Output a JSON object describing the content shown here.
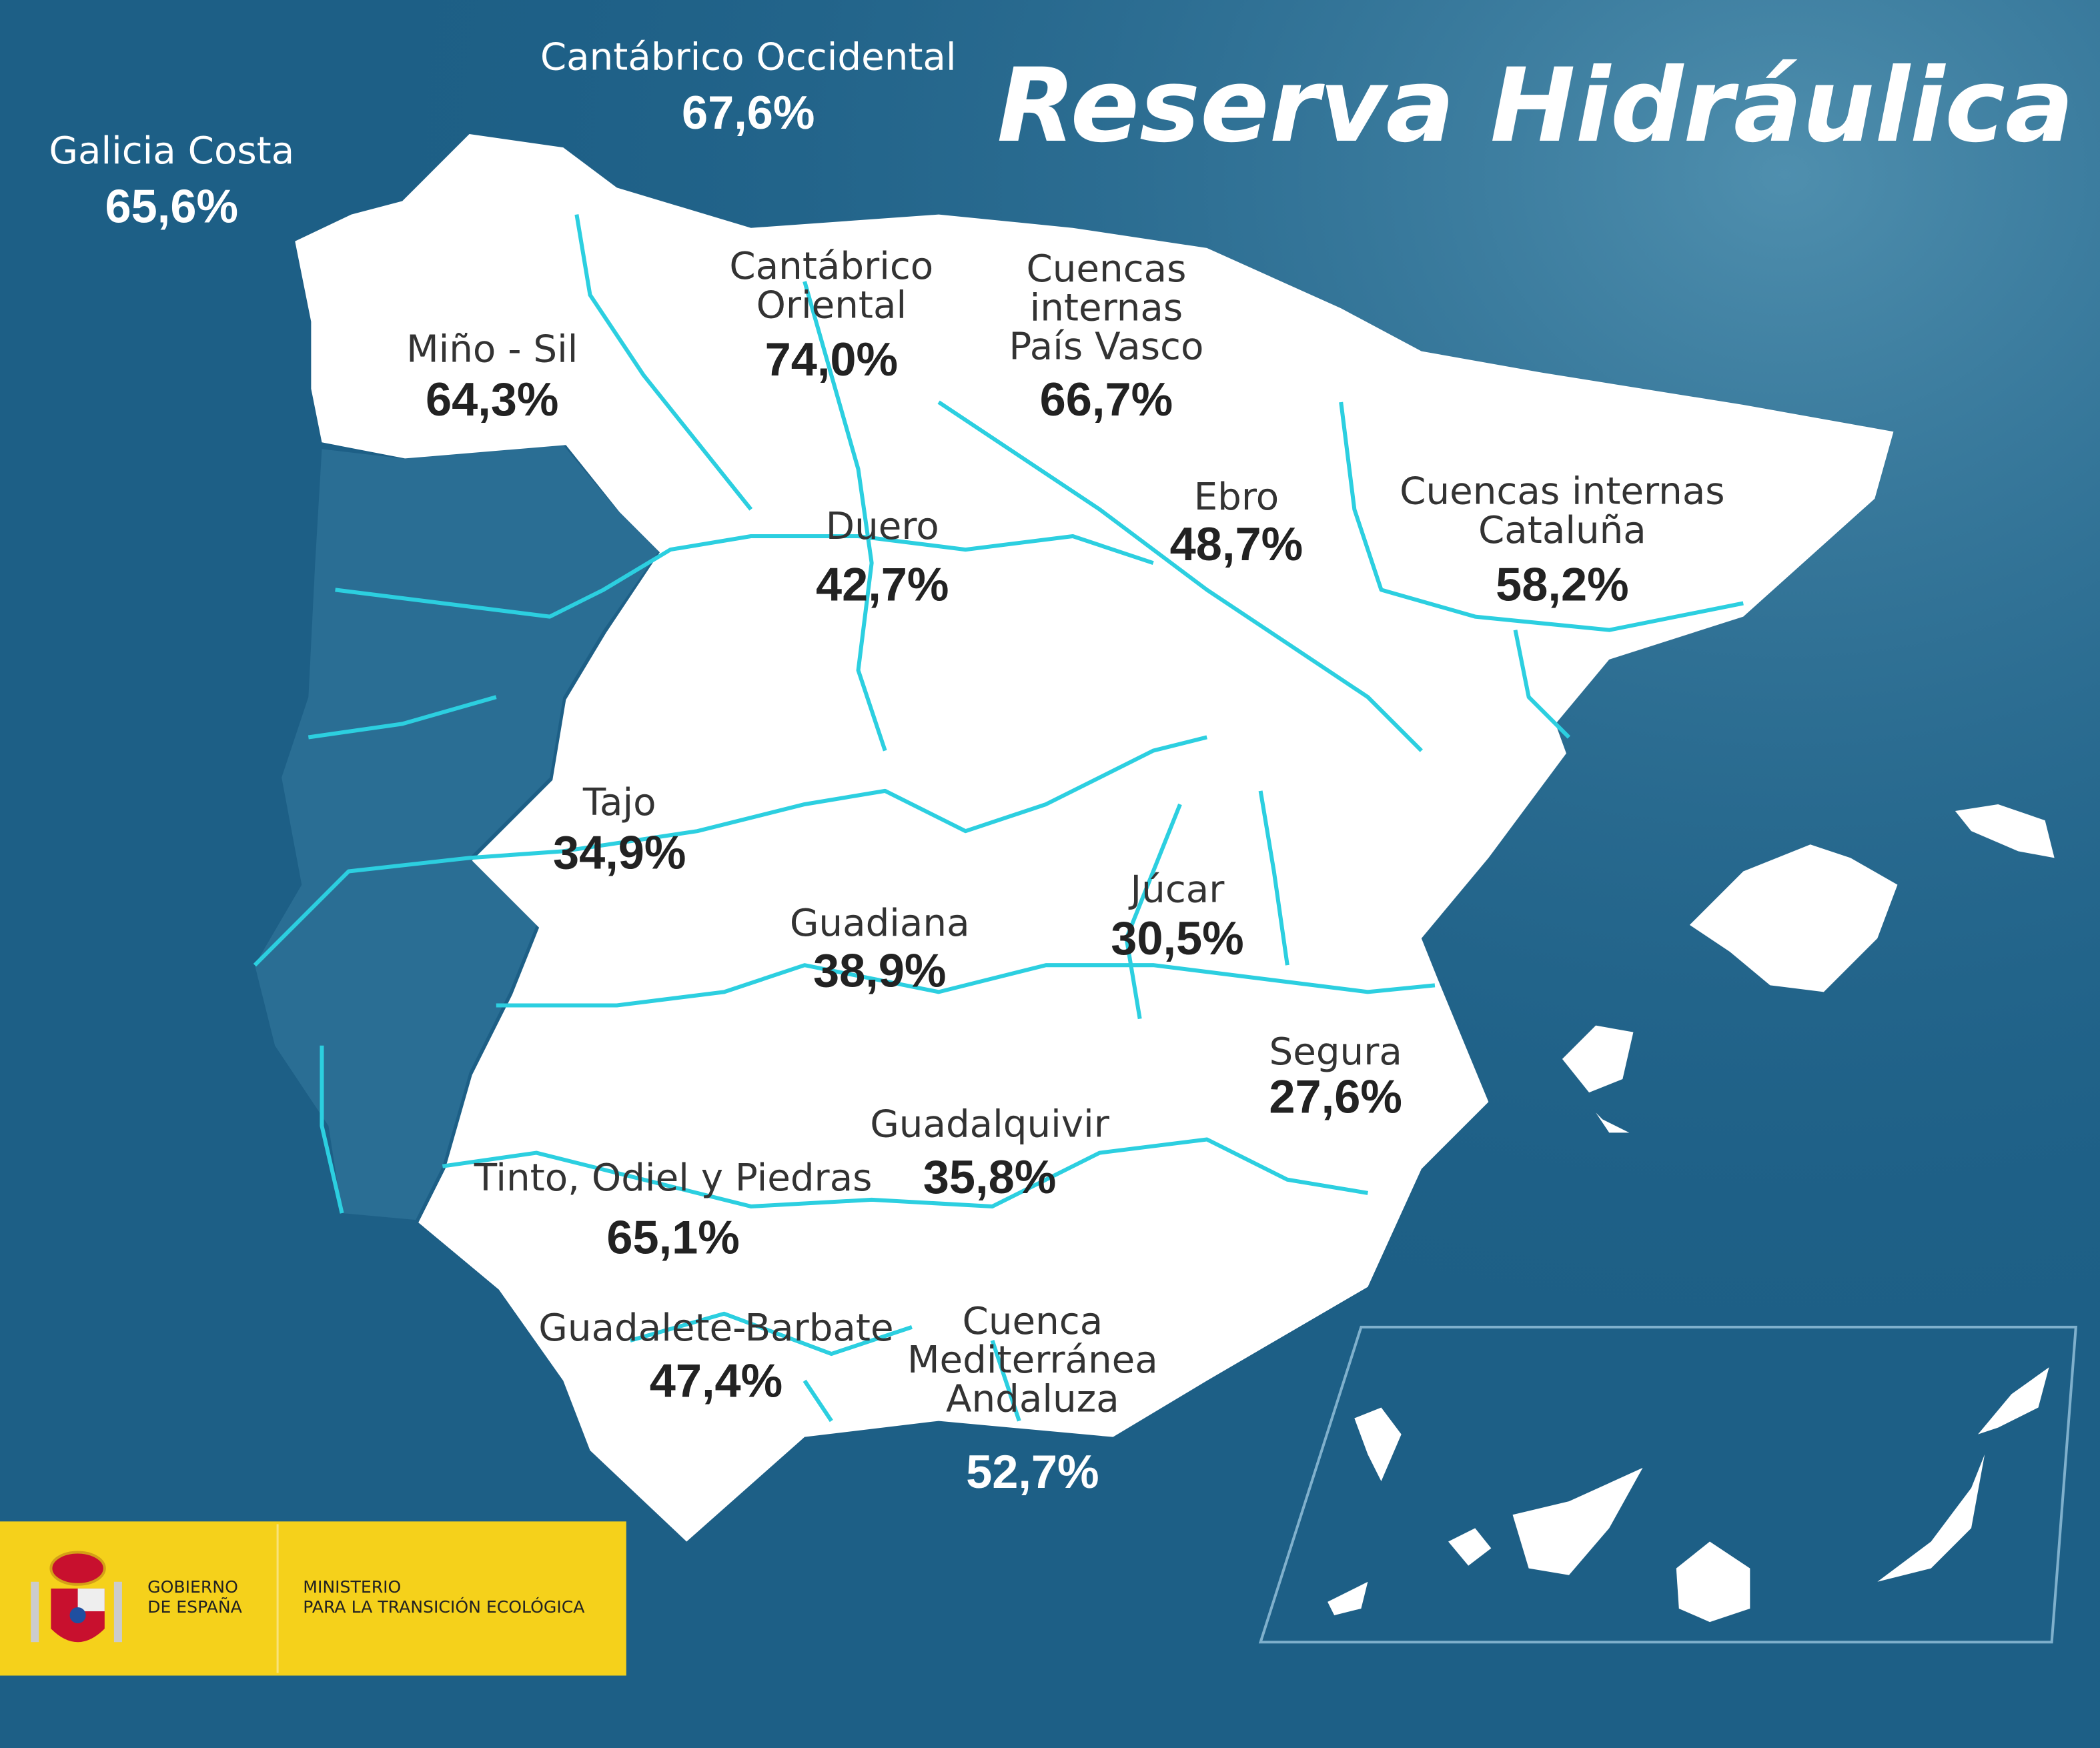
{
  "title": "Reserva Hidráulica",
  "colors": {
    "sea": "#1d5f86",
    "land": "#ffffff",
    "rivers": "#2ccfe0",
    "logo_band": "#f5d11b"
  },
  "basins": [
    {
      "name": [
        "Galicia Costa"
      ],
      "value": "65,6%"
    },
    {
      "name": [
        "Cantábrico Occidental"
      ],
      "value": "67,6%"
    },
    {
      "name": [
        "Miño - Sil"
      ],
      "value": "64,3%"
    },
    {
      "name": [
        "Cantábrico",
        "Oriental"
      ],
      "value": "74,0%"
    },
    {
      "name": [
        "Cuencas",
        "internas",
        "País Vasco"
      ],
      "value": "66,7%"
    },
    {
      "name": [
        "Ebro"
      ],
      "value": "48,7%"
    },
    {
      "name": [
        "Cuencas internas",
        "Cataluña"
      ],
      "value": "58,2%"
    },
    {
      "name": [
        "Duero"
      ],
      "value": "42,7%"
    },
    {
      "name": [
        "Tajo"
      ],
      "value": "34,9%"
    },
    {
      "name": [
        "Júcar"
      ],
      "value": "30,5%"
    },
    {
      "name": [
        "Guadiana"
      ],
      "value": "38,9%"
    },
    {
      "name": [
        "Segura"
      ],
      "value": "27,6%"
    },
    {
      "name": [
        "Guadalquivir"
      ],
      "value": "35,8%"
    },
    {
      "name": [
        "Tinto, Odiel y Piedras"
      ],
      "value": "65,1%"
    },
    {
      "name": [
        "Guadalete-Barbate"
      ],
      "value": "47,4%"
    },
    {
      "name": [
        "Cuenca",
        "Mediterránea",
        "Andaluza"
      ],
      "value": "52,7%"
    }
  ],
  "logo": {
    "gov_line1": "GOBIERNO",
    "gov_line2": "DE ESPAÑA",
    "ministry_line1": "MINISTERIO",
    "ministry_line2": "PARA LA TRANSICIÓN ECOLÓGICA"
  }
}
